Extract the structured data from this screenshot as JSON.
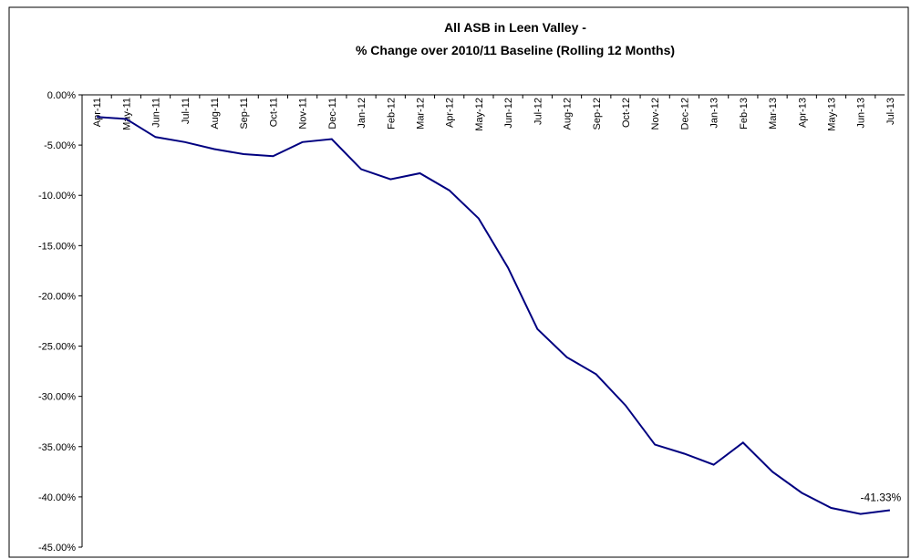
{
  "chart_data": {
    "type": "line",
    "title": "All ASB in Leen Valley -",
    "subtitle": "% Change over 2010/11 Baseline (Rolling 12 Months)",
    "categories": [
      "Apr-11",
      "May-11",
      "Jun-11",
      "Jul-11",
      "Aug-11",
      "Sep-11",
      "Oct-11",
      "Nov-11",
      "Dec-11",
      "Jan-12",
      "Feb-12",
      "Mar-12",
      "Apr-12",
      "May-12",
      "Jun-12",
      "Jul-12",
      "Aug-12",
      "Sep-12",
      "Oct-12",
      "Nov-12",
      "Dec-12",
      "Jan-13",
      "Feb-13",
      "Mar-13",
      "Apr-13",
      "May-13",
      "Jun-13",
      "Jul-13"
    ],
    "values": [
      -2.2,
      -2.4,
      -4.2,
      -4.7,
      -5.4,
      -5.9,
      -6.1,
      -4.7,
      -4.4,
      -7.4,
      -8.4,
      -7.8,
      -9.5,
      -12.3,
      -17.2,
      -23.3,
      -26.1,
      -27.8,
      -30.9,
      -34.8,
      -35.7,
      -36.8,
      -34.6,
      -37.5,
      -39.6,
      -41.1,
      -41.7,
      -41.33
    ],
    "value_labels": [
      null,
      null,
      null,
      null,
      null,
      null,
      null,
      null,
      null,
      null,
      null,
      null,
      null,
      null,
      null,
      null,
      null,
      null,
      null,
      null,
      null,
      null,
      null,
      null,
      null,
      null,
      null,
      "-41.33%"
    ],
    "color": "#000080",
    "ylim": [
      -45,
      0
    ],
    "yticks": [
      {
        "value": 0,
        "label": "0.00%"
      },
      {
        "value": -5,
        "label": "-5.00%"
      },
      {
        "value": -10,
        "label": "-10.00%"
      },
      {
        "value": -15,
        "label": "-15.00%"
      },
      {
        "value": -20,
        "label": "-20.00%"
      },
      {
        "value": -25,
        "label": "-25.00%"
      },
      {
        "value": -30,
        "label": "-30.00%"
      },
      {
        "value": -35,
        "label": "-35.00%"
      },
      {
        "value": -40,
        "label": "-40.00%"
      },
      {
        "value": -45,
        "label": "-45.00%"
      }
    ],
    "grid": false
  }
}
